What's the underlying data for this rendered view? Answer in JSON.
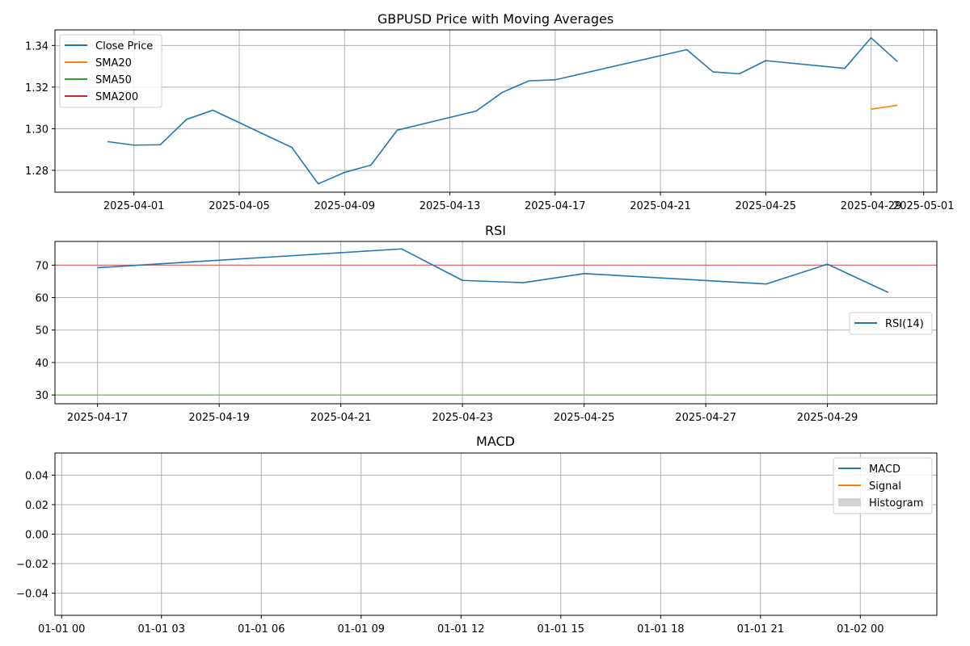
{
  "chart_data": [
    {
      "type": "line",
      "title": "GBPUSD Price with Moving Averages",
      "xlabel": "",
      "ylabel": "",
      "x_range": [
        "2025-03-29",
        "2025-05-01.5"
      ],
      "ylim": [
        1.2695,
        1.3475
      ],
      "x_ticks": [
        "2025-04-01",
        "2025-04-05",
        "2025-04-09",
        "2025-04-13",
        "2025-04-17",
        "2025-04-21",
        "2025-04-25",
        "2025-04-29",
        "2025-05-01"
      ],
      "y_ticks": [
        1.28,
        1.3,
        1.32,
        1.34
      ],
      "grid": true,
      "legend_position": "upper-left",
      "series": [
        {
          "name": "Close Price",
          "color": "#1f77b4",
          "x": [
            "2025-03-31",
            "2025-04-01",
            "2025-04-02",
            "2025-04-03",
            "2025-04-04",
            "2025-04-07",
            "2025-04-08",
            "2025-04-09",
            "2025-04-10",
            "2025-04-11",
            "2025-04-14",
            "2025-04-15",
            "2025-04-16",
            "2025-04-17",
            "2025-04-22",
            "2025-04-23",
            "2025-04-24",
            "2025-04-25",
            "2025-04-28",
            "2025-04-29",
            "2025-04-30"
          ],
          "y": [
            1.2938,
            1.2921,
            1.2923,
            1.3045,
            1.3089,
            1.291,
            1.2735,
            1.279,
            1.2825,
            1.2993,
            1.3085,
            1.3175,
            1.323,
            1.3235,
            1.338,
            1.3273,
            1.3264,
            1.3327,
            1.329,
            1.3437,
            1.3323
          ]
        },
        {
          "name": "SMA20",
          "color": "#ff7f0e",
          "x": [
            "2025-04-29",
            "2025-04-30"
          ],
          "y": [
            1.3094,
            1.3113
          ]
        },
        {
          "name": "SMA50",
          "color": "#2ca02c",
          "x": [],
          "y": []
        },
        {
          "name": "SMA200",
          "color": "#d62728",
          "x": [],
          "y": []
        }
      ]
    },
    {
      "type": "line",
      "title": "RSI",
      "xlabel": "",
      "ylabel": "",
      "x_range": [
        "2025-04-16.3",
        "2025-04-30.8"
      ],
      "ylim": [
        27.3,
        77.3
      ],
      "x_ticks": [
        "2025-04-17",
        "2025-04-19",
        "2025-04-21",
        "2025-04-23",
        "2025-04-25",
        "2025-04-27",
        "2025-04-29"
      ],
      "y_ticks": [
        30,
        40,
        50,
        60,
        70
      ],
      "grid": true,
      "legend_position": "center-right",
      "reference_lines": [
        {
          "y": 70,
          "color": "#e06666"
        },
        {
          "y": 30,
          "color": "#5cb85c"
        }
      ],
      "series": [
        {
          "name": "RSI(14)",
          "color": "#1f77b4",
          "x": [
            "2025-04-17",
            "2025-04-22",
            "2025-04-23",
            "2025-04-24",
            "2025-04-25",
            "2025-04-28",
            "2025-04-29",
            "2025-04-30"
          ],
          "y": [
            69.2,
            75.0,
            65.3,
            64.6,
            67.4,
            64.2,
            70.3,
            61.6
          ]
        }
      ]
    },
    {
      "type": "line",
      "title": "MACD",
      "xlabel": "",
      "ylabel": "",
      "x_range_hours": [
        -0.2,
        26.3
      ],
      "ylim": [
        -0.055,
        0.055
      ],
      "x_ticks": [
        "01-01 00",
        "01-01 03",
        "01-01 06",
        "01-01 09",
        "01-01 12",
        "01-01 15",
        "01-01 18",
        "01-01 21",
        "01-02 00"
      ],
      "y_ticks": [
        "0.04",
        "0.02",
        "0.00",
        "−0.02",
        "−0.04"
      ],
      "y_tick_values": [
        0.04,
        0.02,
        0.0,
        -0.02,
        -0.04
      ],
      "grid": true,
      "legend_position": "upper-right",
      "series": [
        {
          "name": "MACD",
          "color": "#1f77b4",
          "x": [],
          "y": []
        },
        {
          "name": "Signal",
          "color": "#ff7f0e",
          "x": [],
          "y": []
        },
        {
          "name": "Histogram",
          "color": "#d3d3d3",
          "kind": "bar",
          "x": [],
          "y": []
        }
      ]
    }
  ]
}
